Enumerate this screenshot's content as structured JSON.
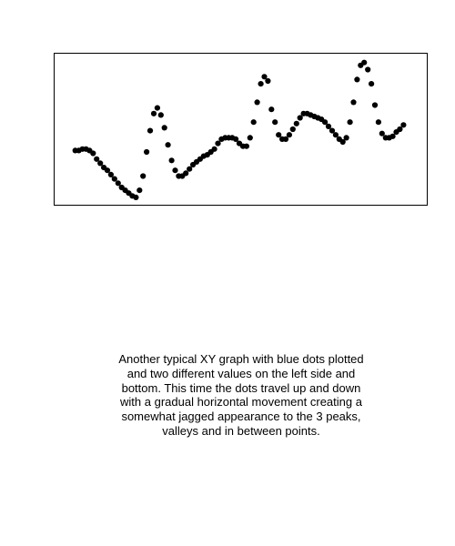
{
  "chart_data": {
    "type": "scatter",
    "title": "",
    "xlabel": "",
    "ylabel": "",
    "axes_visible": false,
    "grid": false,
    "marker_color": "#000000",
    "xlim": [
      0,
      100
    ],
    "ylim": [
      0,
      100
    ],
    "x": [
      3.5,
      4.5,
      5.5,
      6.5,
      7.5,
      8.5,
      9.5,
      10.5,
      11.5,
      12.5,
      13.5,
      14.5,
      15.5,
      16.5,
      17.5,
      18.5,
      19.5,
      20.5,
      21.5,
      22.5,
      23.5,
      24.5,
      25.5,
      26.5,
      27.5,
      28.5,
      29.5,
      30.5,
      31.5,
      32.5,
      33.5,
      34.5,
      35.5,
      36.5,
      37.5,
      38.5,
      39.5,
      40.5,
      41.5,
      42.5,
      43.5,
      44.5,
      45.5,
      46.5,
      47.5,
      48.5,
      49.5,
      50.5,
      51.5,
      52.5,
      53.5,
      54.5,
      55.5,
      56.5,
      57.5,
      58.5,
      59.5,
      60.5,
      61.5,
      62.5,
      63.5,
      64.5,
      65.5,
      66.5,
      67.5,
      68.5,
      69.5,
      70.5,
      71.5,
      72.5,
      73.5,
      74.5,
      75.5,
      76.5,
      77.5,
      78.5,
      79.5,
      80.5,
      81.5,
      82.5,
      83.5,
      84.5,
      85.5,
      86.5,
      87.5,
      88.5,
      89.5,
      90.5,
      91.5,
      92.5,
      93.5,
      94.5,
      95.5
    ],
    "y": [
      35,
      35,
      36,
      36,
      35,
      33,
      29,
      26,
      23,
      21,
      18,
      15,
      12,
      9,
      7,
      5,
      3,
      2,
      7,
      17,
      34,
      49,
      61,
      65,
      60,
      51,
      39,
      28,
      21,
      17,
      17,
      19,
      22,
      25,
      27,
      29,
      31,
      32,
      34,
      36,
      40,
      43,
      44,
      44,
      44,
      43,
      40,
      38,
      38,
      44,
      55,
      69,
      82,
      87,
      84,
      64,
      55,
      46,
      43,
      43,
      46,
      50,
      54,
      58,
      61,
      61,
      60,
      59,
      58,
      57,
      55,
      52,
      49,
      46,
      43,
      41,
      44,
      55,
      69,
      85,
      95,
      97,
      92,
      82,
      67,
      55,
      47,
      44,
      44,
      45,
      48,
      50,
      53
    ],
    "note": "Another typical XY graph with blue dots plotted and two different values on the left side and bottom. This time the dots travel up and down with a gradual horizontal movement creating a somewhat jagged appearance to the 3 peaks, valleys and in between points."
  }
}
